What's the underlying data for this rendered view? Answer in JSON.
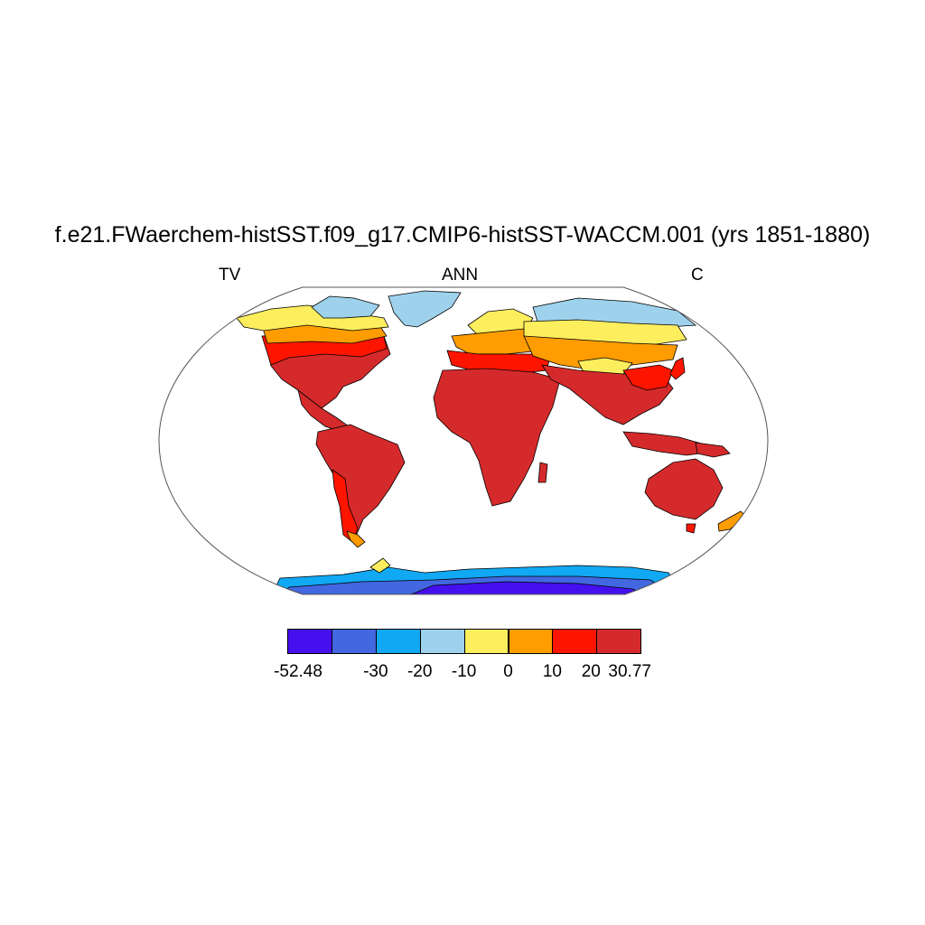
{
  "title": "f.e21.FWaerchem-histSST.f09_g17.CMIP6-histSST-WACCM.001 (yrs 1851-1880)",
  "subtitle_left": "TV",
  "subtitle_center": "ANN",
  "subtitle_right": "C",
  "colorbar": {
    "colors": [
      "#4410f0",
      "#4267e0",
      "#11a8f4",
      "#9ed2ec",
      "#fdee5e",
      "#fe9c00",
      "#fe1500",
      "#d52a2b"
    ],
    "tick_labels": [
      "-52.48",
      "-30",
      "-20",
      "-10",
      "0",
      "10",
      "20",
      "30.77"
    ]
  }
}
